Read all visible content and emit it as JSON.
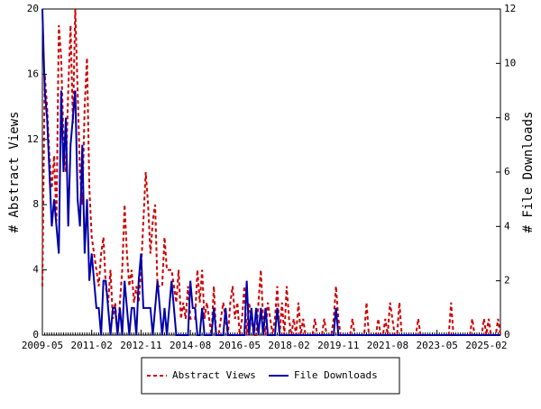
{
  "chart_data": {
    "type": "line",
    "y_label": "# Abstract Views",
    "y2_label": "# File Downloads",
    "x": [
      "2009-05",
      "2009-06",
      "2009-07",
      "2009-08",
      "2009-09",
      "2009-10",
      "2009-11",
      "2009-12",
      "2010-01",
      "2010-02",
      "2010-03",
      "2010-04",
      "2010-05",
      "2010-06",
      "2010-07",
      "2010-08",
      "2010-09",
      "2010-10",
      "2010-11",
      "2010-12",
      "2011-01",
      "2011-02",
      "2011-03",
      "2011-04",
      "2011-05",
      "2011-06",
      "2011-07",
      "2011-08",
      "2011-09",
      "2011-10",
      "2011-11",
      "2011-12",
      "2012-01",
      "2012-02",
      "2012-03",
      "2012-04",
      "2012-05",
      "2012-06",
      "2012-07",
      "2012-08",
      "2012-09",
      "2012-10",
      "2012-11",
      "2012-12",
      "2013-01",
      "2013-02",
      "2013-03",
      "2013-04",
      "2013-05",
      "2013-06",
      "2013-07",
      "2013-08",
      "2013-09",
      "2013-10",
      "2013-11",
      "2013-12",
      "2014-01",
      "2014-02",
      "2014-03",
      "2014-04",
      "2014-05",
      "2014-06",
      "2014-07",
      "2014-08",
      "2014-09",
      "2014-10",
      "2014-11",
      "2014-12",
      "2015-01",
      "2015-02",
      "2015-03",
      "2015-04",
      "2015-05",
      "2015-06",
      "2015-07",
      "2015-08",
      "2015-09",
      "2015-10",
      "2015-11",
      "2015-12",
      "2016-01",
      "2016-02",
      "2016-03",
      "2016-04",
      "2016-05",
      "2016-06",
      "2016-07",
      "2016-08",
      "2016-09",
      "2016-10",
      "2016-11",
      "2016-12",
      "2017-01",
      "2017-02",
      "2017-03",
      "2017-04",
      "2017-05",
      "2017-06",
      "2017-07",
      "2017-08",
      "2017-09",
      "2017-10",
      "2017-11",
      "2017-12",
      "2018-01",
      "2018-02",
      "2018-03",
      "2018-04",
      "2018-05",
      "2018-06",
      "2018-07",
      "2018-08",
      "2018-09",
      "2018-10",
      "2018-11",
      "2018-12",
      "2019-01",
      "2019-02",
      "2019-03",
      "2019-04",
      "2019-05",
      "2019-06",
      "2019-07",
      "2019-08",
      "2019-09",
      "2019-10",
      "2019-11",
      "2019-12",
      "2020-01",
      "2020-02",
      "2020-03",
      "2020-04",
      "2020-05",
      "2020-06",
      "2020-07",
      "2020-08",
      "2020-09",
      "2020-10",
      "2020-11",
      "2020-12",
      "2021-01",
      "2021-02",
      "2021-03",
      "2021-04",
      "2021-05",
      "2021-06",
      "2021-07",
      "2021-08",
      "2021-09",
      "2021-10",
      "2021-11",
      "2021-12",
      "2022-01",
      "2022-02",
      "2022-03",
      "2022-04",
      "2022-05",
      "2022-06",
      "2022-07",
      "2022-08",
      "2022-09",
      "2022-10",
      "2022-11",
      "2022-12",
      "2023-01",
      "2023-02",
      "2023-03",
      "2023-04",
      "2023-05",
      "2023-06",
      "2023-07",
      "2023-08",
      "2023-09",
      "2023-10",
      "2023-11",
      "2023-12",
      "2024-01",
      "2024-02",
      "2024-03",
      "2024-04",
      "2024-05",
      "2024-06",
      "2024-07",
      "2024-08",
      "2024-09",
      "2024-10",
      "2024-11",
      "2024-12",
      "2025-01",
      "2025-02",
      "2025-03",
      "2025-04",
      "2025-05",
      "2025-06",
      "2025-07",
      "2025-08"
    ],
    "xlim": [
      "2009-05",
      "2025-08"
    ],
    "xticks": [
      "2009-05",
      "2011-02",
      "2012-11",
      "2014-08",
      "2016-05",
      "2018-02",
      "2019-11",
      "2021-08",
      "2023-05",
      "2025-02"
    ],
    "ylim": [
      0,
      20
    ],
    "yticks": [
      0,
      4,
      8,
      12,
      16,
      20
    ],
    "y2lim": [
      0,
      12
    ],
    "y2ticks": [
      0,
      2,
      4,
      6,
      8,
      10,
      12
    ],
    "series": [
      {
        "name": "Abstract Views",
        "color": "#cc0000",
        "dash": true,
        "values": [
          3,
          16,
          14,
          11,
          9,
          11,
          7,
          19,
          17,
          12,
          10,
          15,
          19,
          13,
          20,
          15,
          10,
          8,
          14,
          17,
          9,
          6,
          5,
          4,
          3,
          5,
          6,
          3,
          2,
          4,
          1,
          2,
          0,
          2,
          4,
          8,
          5,
          3,
          4,
          2,
          3,
          2,
          4,
          7,
          10,
          8,
          5,
          7,
          8,
          3,
          3,
          3,
          6,
          4,
          4,
          4,
          3,
          2,
          4,
          1,
          2,
          1,
          3,
          1,
          1,
          1,
          4,
          2,
          4,
          1,
          2,
          1,
          0,
          3,
          0,
          0,
          1,
          2,
          1,
          0,
          2,
          3,
          1,
          2,
          0,
          1,
          3,
          0,
          2,
          1,
          0,
          0,
          2,
          4,
          1,
          0,
          2,
          1,
          0,
          1,
          3,
          0,
          2,
          0,
          3,
          1,
          0,
          1,
          0,
          2,
          0,
          1,
          0,
          0,
          0,
          0,
          1,
          0,
          0,
          0,
          1,
          0,
          0,
          0,
          1,
          3,
          1,
          0,
          0,
          0,
          0,
          0,
          1,
          0,
          0,
          0,
          0,
          0,
          2,
          0,
          0,
          0,
          0,
          1,
          0,
          0,
          1,
          0,
          2,
          1,
          0,
          0,
          2,
          0,
          0,
          0,
          0,
          0,
          0,
          0,
          1,
          0,
          0,
          0,
          0,
          0,
          0,
          0,
          0,
          0,
          0,
          0,
          0,
          0,
          2,
          0,
          0,
          0,
          0,
          0,
          0,
          0,
          0,
          1,
          0,
          0,
          0,
          0,
          1,
          0,
          1,
          0,
          0,
          0,
          1,
          0
        ]
      },
      {
        "name": "File Downloads",
        "color": "#0000aa",
        "axis": "y2",
        "values": [
          12,
          9,
          8,
          6,
          4,
          5,
          4,
          3,
          9,
          6,
          8,
          4,
          7,
          8,
          9,
          5,
          4,
          7,
          3,
          5,
          2,
          3,
          2,
          1,
          1,
          0,
          2,
          2,
          1,
          0,
          1,
          1,
          0,
          1,
          0,
          2,
          1,
          0,
          1,
          1,
          0,
          2,
          3,
          1,
          1,
          1,
          1,
          0,
          1,
          2,
          1,
          0,
          1,
          0,
          1,
          2,
          1,
          0,
          0,
          0,
          0,
          0,
          0,
          2,
          1,
          1,
          0,
          0,
          1,
          0,
          0,
          0,
          0,
          1,
          0,
          0,
          0,
          0,
          1,
          0,
          0,
          0,
          0,
          0,
          0,
          0,
          0,
          2,
          0,
          1,
          0,
          1,
          0,
          1,
          0,
          1,
          0,
          0,
          0,
          0,
          1,
          0,
          0,
          0,
          0,
          0,
          0,
          0,
          0,
          0,
          0,
          0,
          0,
          0,
          0,
          0,
          0,
          0,
          0,
          0,
          0,
          0,
          0,
          0,
          0,
          1,
          0,
          0,
          0,
          0,
          0,
          0,
          0,
          0,
          0,
          0,
          0,
          0,
          0,
          0,
          0,
          0,
          0,
          0,
          0,
          0,
          0,
          0,
          0,
          0,
          0,
          0,
          0,
          0,
          0,
          0,
          0,
          0,
          0,
          0,
          0,
          0,
          0,
          0,
          0,
          0,
          0,
          0,
          0,
          0,
          0,
          0,
          0,
          0,
          0,
          0,
          0,
          0,
          0,
          0,
          0,
          0,
          0,
          0,
          0,
          0,
          0,
          0,
          0,
          0,
          0,
          0,
          0,
          0,
          0,
          0
        ]
      }
    ]
  }
}
